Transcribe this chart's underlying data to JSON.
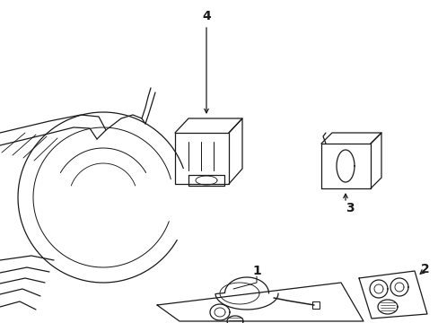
{
  "bg_color": "#ffffff",
  "line_color": "#1a1a1a",
  "lw": 0.9,
  "fig_width": 4.89,
  "fig_height": 3.6,
  "dpi": 100
}
